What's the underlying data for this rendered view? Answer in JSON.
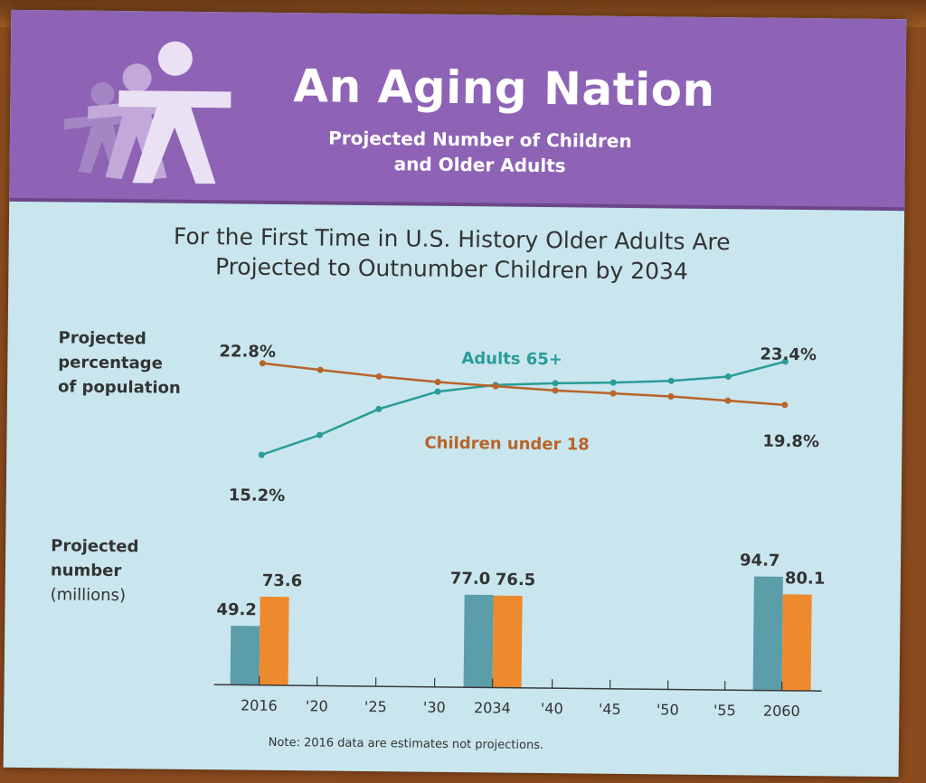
{
  "header": {
    "title": "An Aging Nation",
    "subtitle_line1": "Projected Number of Children",
    "subtitle_line2": "and Older Adults"
  },
  "colors": {
    "header_bg": "#8e63b5",
    "adults_color": "#2a9c98",
    "children_color": "#b8642a",
    "bar_adults": "#5b9da8",
    "bar_children": "#ee8a2e"
  },
  "headline": {
    "line1": "For the First Time in U.S. History Older Adults Are",
    "line2": "Projected to Outnumber Children by 2034"
  },
  "chart_data": [
    {
      "type": "line",
      "ylabel_lines": [
        "Projected",
        "percentage",
        "of population"
      ],
      "x": [
        "2016",
        "'20",
        "'25",
        "'30",
        "2034",
        "'40",
        "'45",
        "'50",
        "'55",
        "2060"
      ],
      "series": [
        {
          "name": "Adults 65+",
          "values": [
            15.2,
            16.9,
            19.1,
            20.6,
            21.2,
            21.4,
            21.5,
            21.7,
            22.1,
            23.4
          ]
        },
        {
          "name": "Children under 18",
          "values": [
            22.8,
            22.3,
            21.8,
            21.4,
            21.1,
            20.8,
            20.6,
            20.4,
            20.1,
            19.8
          ]
        }
      ],
      "labels": {
        "children_start": "22.8%",
        "adults_end": "23.4%",
        "adults_start": "15.2%",
        "children_end": "19.8%",
        "adults_series": "Adults 65+",
        "children_series": "Children under 18"
      }
    },
    {
      "type": "bar",
      "ylabel_lines": [
        "Projected",
        "number",
        "(millions)"
      ],
      "categories": [
        "2016",
        "2034",
        "2060"
      ],
      "series": [
        {
          "name": "Adults 65+",
          "values": [
            49.2,
            77.0,
            94.7
          ]
        },
        {
          "name": "Children under 18",
          "values": [
            73.6,
            76.5,
            80.1
          ]
        }
      ],
      "value_labels": {
        "adults": [
          "49.2",
          "77.0",
          "94.7"
        ],
        "children": [
          "73.6",
          "76.5",
          "80.1"
        ]
      },
      "axis_ticks": [
        "2016",
        "'20",
        "'25",
        "'30",
        "2034",
        "'40",
        "'45",
        "'50",
        "'55",
        "2060"
      ]
    }
  ],
  "note": "Note: 2016 data are estimates not projections."
}
